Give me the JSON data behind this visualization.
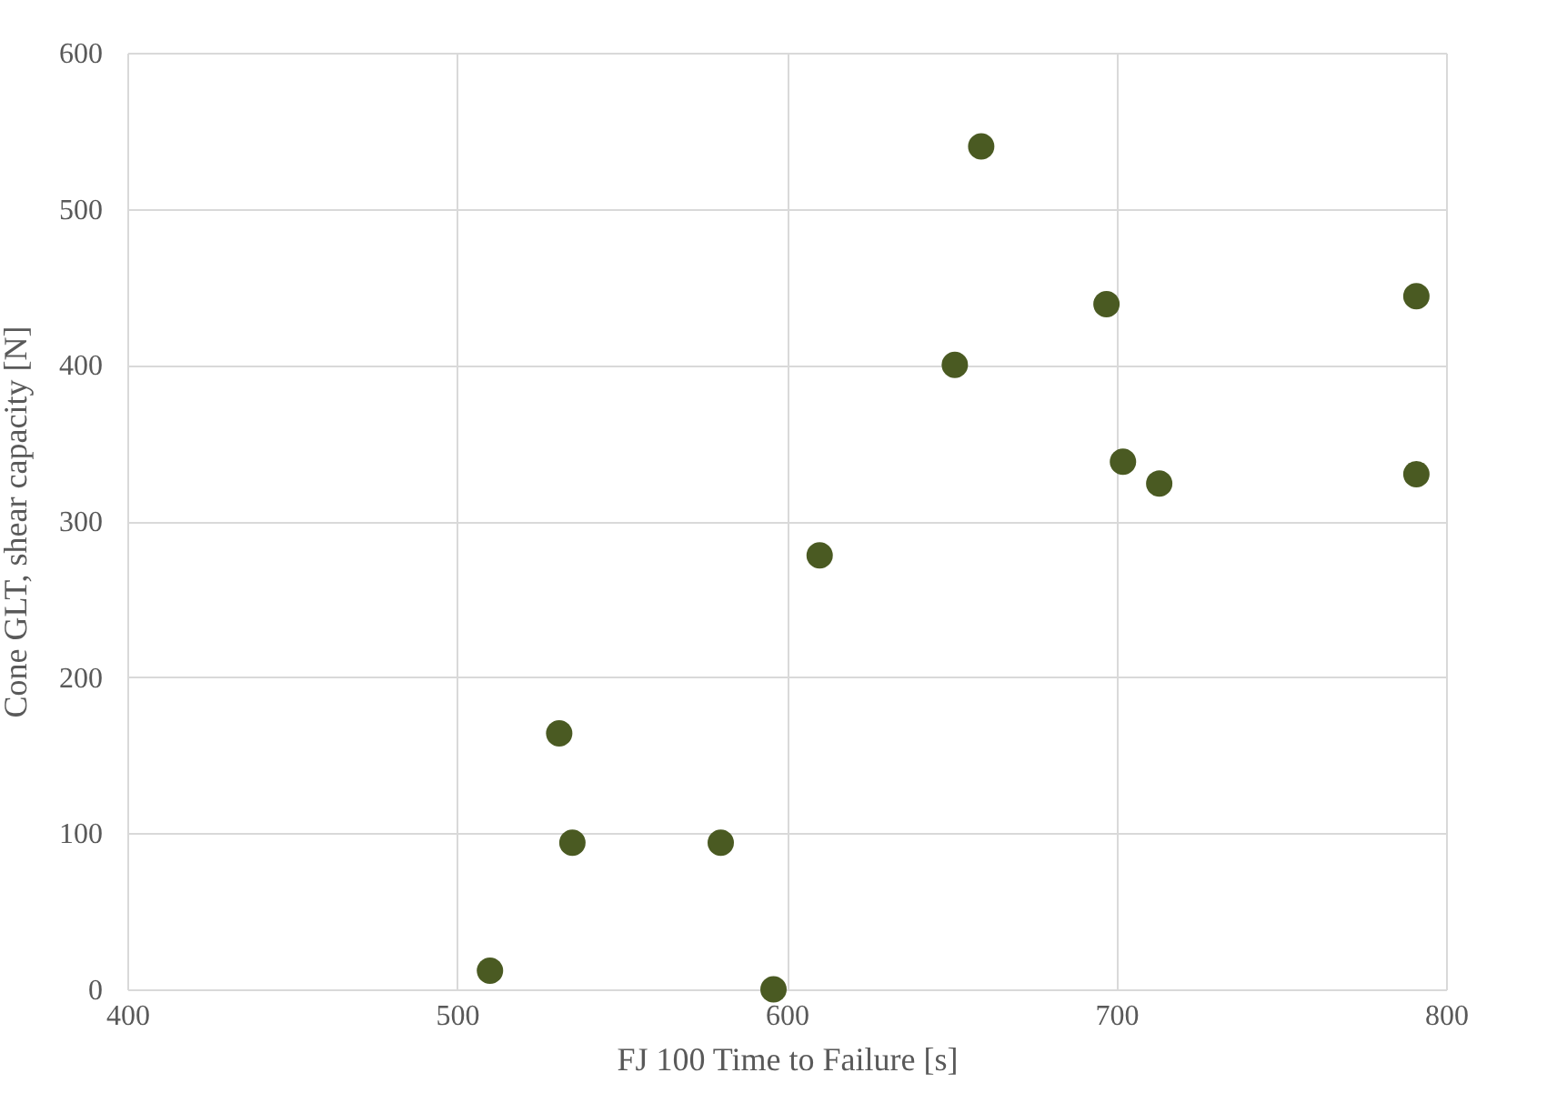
{
  "chart_data": {
    "type": "scatter",
    "xlabel": "FJ 100  Time to Failure [s]",
    "ylabel": "Cone GLT, shear capacity [N]",
    "x": [
      510,
      531,
      535,
      580,
      596,
      610,
      651,
      659,
      697,
      702,
      713,
      791,
      791
    ],
    "series": [
      {
        "color": "#4a5a22",
        "values": [
          12,
          164,
          94,
          94,
          0,
          278,
          400,
          540,
          439,
          338,
          324,
          444,
          330
        ]
      }
    ],
    "xlim": [
      400,
      800
    ],
    "xticks": [
      400,
      500,
      600,
      700,
      800
    ],
    "ylim": [
      0,
      600
    ],
    "yticks": [
      0,
      100,
      200,
      300,
      400,
      500,
      600
    ],
    "grid": true,
    "marker": "circle"
  }
}
